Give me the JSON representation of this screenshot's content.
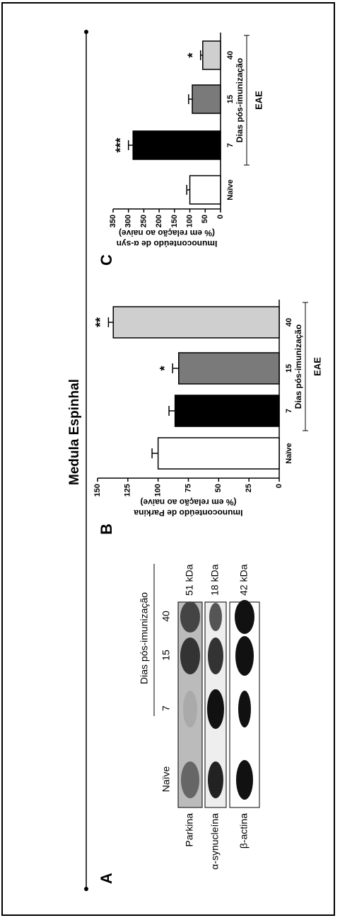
{
  "title": "Medula Espinhal",
  "panel_a": {
    "panel": "A",
    "columns_title": "Dias pós-imunização",
    "columns": [
      "Naïve",
      "7",
      "15",
      "40"
    ],
    "rows": [
      {
        "label": "Parkina",
        "size": "51 kDa"
      },
      {
        "label": "α-synucleína",
        "size": "18 kDa"
      },
      {
        "label": "β-actina",
        "size": "42 kDa"
      }
    ]
  },
  "chart_data": [
    {
      "type": "bar",
      "panel": "B",
      "ylabel": [
        "Imunoconteúdo de Parkina",
        "(% em relação ao naive)"
      ],
      "categories": [
        "Naïve",
        "7",
        "15",
        "40"
      ],
      "values": [
        100,
        86,
        83,
        137
      ],
      "errors": [
        5,
        5,
        5,
        4
      ],
      "annotations": [
        null,
        null,
        "*",
        "**"
      ],
      "colors": [
        "#ffffff",
        "#000000",
        "#7a7a7a",
        "#cfcfcf"
      ],
      "group_label": "Dias pós-imunização",
      "group": "EAE",
      "ylim": [
        0,
        150
      ],
      "yticks": [
        0,
        25,
        50,
        75,
        100,
        125,
        150
      ]
    },
    {
      "type": "bar",
      "panel": "C",
      "ylabel": [
        "Imunoconteúdo de α-syn",
        "(% em relação ao naive)"
      ],
      "categories": [
        "Naïve",
        "7",
        "15",
        "40"
      ],
      "values": [
        100,
        285,
        92,
        58
      ],
      "errors": [
        10,
        15,
        12,
        7
      ],
      "annotations": [
        null,
        "***",
        null,
        "*"
      ],
      "colors": [
        "#ffffff",
        "#000000",
        "#7a7a7a",
        "#cfcfcf"
      ],
      "group_label": "Dias pós-imunização",
      "group": "EAE",
      "ylim": [
        0,
        350
      ],
      "yticks": [
        0,
        50,
        100,
        150,
        200,
        250,
        300,
        350
      ]
    }
  ]
}
